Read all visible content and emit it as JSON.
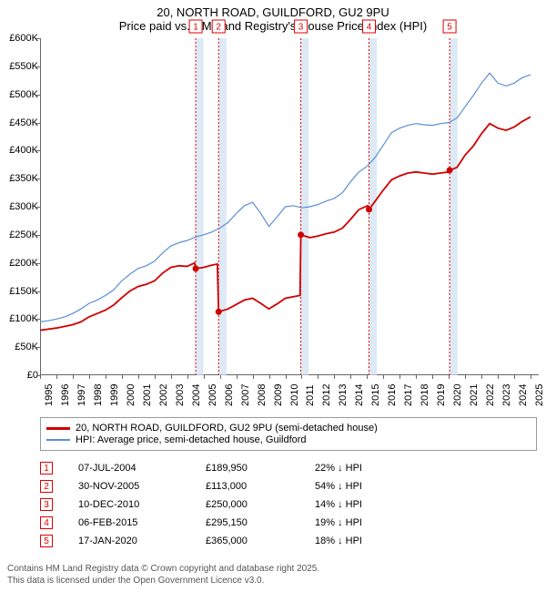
{
  "title_line1": "20, NORTH ROAD, GUILDFORD, GU2 9PU",
  "title_line2": "Price paid vs. HM Land Registry's House Price Index (HPI)",
  "chart": {
    "type": "line",
    "x_range": [
      1995,
      2025.5
    ],
    "y_range": [
      0,
      600000
    ],
    "y_ticks": [
      0,
      50000,
      100000,
      150000,
      200000,
      250000,
      300000,
      350000,
      400000,
      450000,
      500000,
      550000,
      600000
    ],
    "y_tick_labels": [
      "£0",
      "£50K",
      "£100K",
      "£150K",
      "£200K",
      "£250K",
      "£300K",
      "£350K",
      "£400K",
      "£450K",
      "£500K",
      "£550K",
      "£600K"
    ],
    "x_ticks": [
      1995,
      1996,
      1997,
      1998,
      1999,
      2000,
      2001,
      2002,
      2003,
      2004,
      2005,
      2006,
      2007,
      2008,
      2009,
      2010,
      2011,
      2012,
      2013,
      2014,
      2015,
      2016,
      2017,
      2018,
      2019,
      2020,
      2021,
      2022,
      2023,
      2024,
      2025
    ],
    "plot_bg": "#ffffff",
    "grid_color": "#666666",
    "series_price": {
      "label": "20, NORTH ROAD, GUILDFORD, GU2 9PU (semi-detached house)",
      "color": "#d00000",
      "line_width": 1.8,
      "data": [
        [
          1995.0,
          80000
        ],
        [
          1995.5,
          82000
        ],
        [
          1996.0,
          84000
        ],
        [
          1996.5,
          87000
        ],
        [
          1997.0,
          90000
        ],
        [
          1997.5,
          95000
        ],
        [
          1998.0,
          104000
        ],
        [
          1998.5,
          110000
        ],
        [
          1999.0,
          116000
        ],
        [
          1999.5,
          125000
        ],
        [
          2000.0,
          138000
        ],
        [
          2000.5,
          150000
        ],
        [
          2001.0,
          158000
        ],
        [
          2001.5,
          162000
        ],
        [
          2002.0,
          168000
        ],
        [
          2002.5,
          182000
        ],
        [
          2003.0,
          192000
        ],
        [
          2003.5,
          195000
        ],
        [
          2004.0,
          194000
        ],
        [
          2004.45,
          200000
        ],
        [
          2004.52,
          189950
        ],
        [
          2005.0,
          192000
        ],
        [
          2005.5,
          196000
        ],
        [
          2005.85,
          198000
        ],
        [
          2005.92,
          113000
        ],
        [
          2006.5,
          118000
        ],
        [
          2007.0,
          126000
        ],
        [
          2007.5,
          134000
        ],
        [
          2008.0,
          137000
        ],
        [
          2008.5,
          128000
        ],
        [
          2009.0,
          118000
        ],
        [
          2009.5,
          127000
        ],
        [
          2010.0,
          137000
        ],
        [
          2010.5,
          140000
        ],
        [
          2010.9,
          142000
        ],
        [
          2010.95,
          250000
        ],
        [
          2011.5,
          245000
        ],
        [
          2012.0,
          248000
        ],
        [
          2012.5,
          252000
        ],
        [
          2013.0,
          255000
        ],
        [
          2013.5,
          262000
        ],
        [
          2014.0,
          278000
        ],
        [
          2014.5,
          295000
        ],
        [
          2015.05,
          302000
        ],
        [
          2015.12,
          295150
        ],
        [
          2015.5,
          310000
        ],
        [
          2016.0,
          330000
        ],
        [
          2016.5,
          348000
        ],
        [
          2017.0,
          355000
        ],
        [
          2017.5,
          360000
        ],
        [
          2018.0,
          362000
        ],
        [
          2018.5,
          360000
        ],
        [
          2019.0,
          358000
        ],
        [
          2019.5,
          360000
        ],
        [
          2020.0,
          362000
        ],
        [
          2020.05,
          365000
        ],
        [
          2020.5,
          370000
        ],
        [
          2021.0,
          392000
        ],
        [
          2021.5,
          408000
        ],
        [
          2022.0,
          430000
        ],
        [
          2022.5,
          448000
        ],
        [
          2023.0,
          440000
        ],
        [
          2023.5,
          436000
        ],
        [
          2024.0,
          442000
        ],
        [
          2024.5,
          452000
        ],
        [
          2025.0,
          460000
        ]
      ]
    },
    "series_hpi": {
      "label": "HPI: Average price, semi-detached house, Guildford",
      "color": "#5a8fd6",
      "line_width": 1.2,
      "data": [
        [
          1995.0,
          95000
        ],
        [
          1995.5,
          97000
        ],
        [
          1996.0,
          100000
        ],
        [
          1996.5,
          104000
        ],
        [
          1997.0,
          110000
        ],
        [
          1997.5,
          118000
        ],
        [
          1998.0,
          128000
        ],
        [
          1998.5,
          134000
        ],
        [
          1999.0,
          142000
        ],
        [
          1999.5,
          152000
        ],
        [
          2000.0,
          168000
        ],
        [
          2000.5,
          180000
        ],
        [
          2001.0,
          190000
        ],
        [
          2001.5,
          195000
        ],
        [
          2002.0,
          203000
        ],
        [
          2002.5,
          218000
        ],
        [
          2003.0,
          230000
        ],
        [
          2003.5,
          236000
        ],
        [
          2004.0,
          240000
        ],
        [
          2004.5,
          246000
        ],
        [
          2005.0,
          250000
        ],
        [
          2005.5,
          255000
        ],
        [
          2006.0,
          262000
        ],
        [
          2006.5,
          272000
        ],
        [
          2007.0,
          288000
        ],
        [
          2007.5,
          302000
        ],
        [
          2008.0,
          308000
        ],
        [
          2008.5,
          288000
        ],
        [
          2009.0,
          265000
        ],
        [
          2009.5,
          282000
        ],
        [
          2010.0,
          300000
        ],
        [
          2010.5,
          302000
        ],
        [
          2011.0,
          298000
        ],
        [
          2011.5,
          300000
        ],
        [
          2012.0,
          304000
        ],
        [
          2012.5,
          310000
        ],
        [
          2013.0,
          315000
        ],
        [
          2013.5,
          325000
        ],
        [
          2014.0,
          345000
        ],
        [
          2014.5,
          362000
        ],
        [
          2015.0,
          372000
        ],
        [
          2015.5,
          388000
        ],
        [
          2016.0,
          410000
        ],
        [
          2016.5,
          432000
        ],
        [
          2017.0,
          440000
        ],
        [
          2017.5,
          445000
        ],
        [
          2018.0,
          448000
        ],
        [
          2018.5,
          446000
        ],
        [
          2019.0,
          445000
        ],
        [
          2019.5,
          448000
        ],
        [
          2020.0,
          450000
        ],
        [
          2020.5,
          458000
        ],
        [
          2021.0,
          478000
        ],
        [
          2021.5,
          498000
        ],
        [
          2022.0,
          520000
        ],
        [
          2022.5,
          538000
        ],
        [
          2023.0,
          520000
        ],
        [
          2023.5,
          515000
        ],
        [
          2024.0,
          520000
        ],
        [
          2024.5,
          530000
        ],
        [
          2025.0,
          535000
        ]
      ]
    },
    "sales": [
      {
        "idx": "1",
        "x": 2004.52,
        "date": "07-JUL-2004",
        "price_label": "£189,950",
        "diff": "22% ↓ HPI",
        "band_start": 2004.52,
        "band_end": 2005.0
      },
      {
        "idx": "2",
        "x": 2005.92,
        "date": "30-NOV-2005",
        "price_label": "£113,000",
        "diff": "54% ↓ HPI",
        "band_start": 2005.92,
        "band_end": 2006.4
      },
      {
        "idx": "3",
        "x": 2010.95,
        "date": "10-DEC-2010",
        "price_label": "£250,000",
        "diff": "14% ↓ HPI",
        "band_start": 2010.95,
        "band_end": 2011.43
      },
      {
        "idx": "4",
        "x": 2015.12,
        "date": "06-FEB-2015",
        "price_label": "£295,150",
        "diff": "19% ↓ HPI",
        "band_start": 2015.12,
        "band_end": 2015.6
      },
      {
        "idx": "5",
        "x": 2020.05,
        "date": "17-JAN-2020",
        "price_label": "£365,000",
        "diff": "18% ↓ HPI",
        "band_start": 2020.05,
        "band_end": 2020.53
      }
    ],
    "price_dots": [
      [
        2004.52,
        189950
      ],
      [
        2005.92,
        113000
      ],
      [
        2010.95,
        250000
      ],
      [
        2015.12,
        295150
      ],
      [
        2020.05,
        365000
      ]
    ]
  },
  "footer_line1": "Contains HM Land Registry data © Crown copyright and database right 2025.",
  "footer_line2": "This data is licensed under the Open Government Licence v3.0."
}
